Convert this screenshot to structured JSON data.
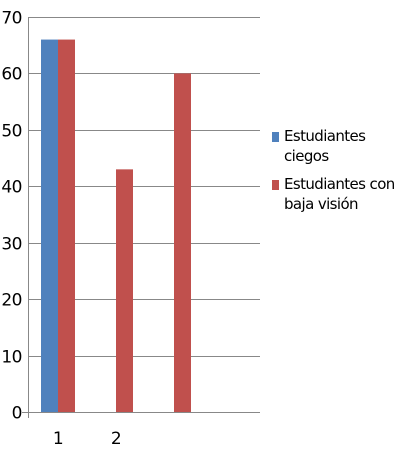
{
  "chart_data": {
    "type": "bar",
    "categories": [
      "1",
      "2",
      ""
    ],
    "series": [
      {
        "name": "Estudiantes ciegos",
        "values": [
          66,
          null,
          null
        ],
        "color": "#4f81bd"
      },
      {
        "name": "Estudiantes con baja visión",
        "values": [
          66,
          43,
          60
        ],
        "color": "#c0504d"
      }
    ],
    "ylim": [
      0,
      70
    ],
    "yticks": [
      0,
      10,
      20,
      30,
      40,
      50,
      60,
      70
    ],
    "title": "",
    "xlabel": "",
    "ylabel": "",
    "grid": true,
    "legend_position": "right"
  },
  "legend": {
    "items": [
      {
        "label": "Estudiantes ciegos",
        "color": "#4f81bd"
      },
      {
        "label": "Estudiantes con baja visión",
        "color": "#c0504d"
      }
    ]
  },
  "colors": {
    "gridline": "#888888",
    "axis": "#888888"
  }
}
